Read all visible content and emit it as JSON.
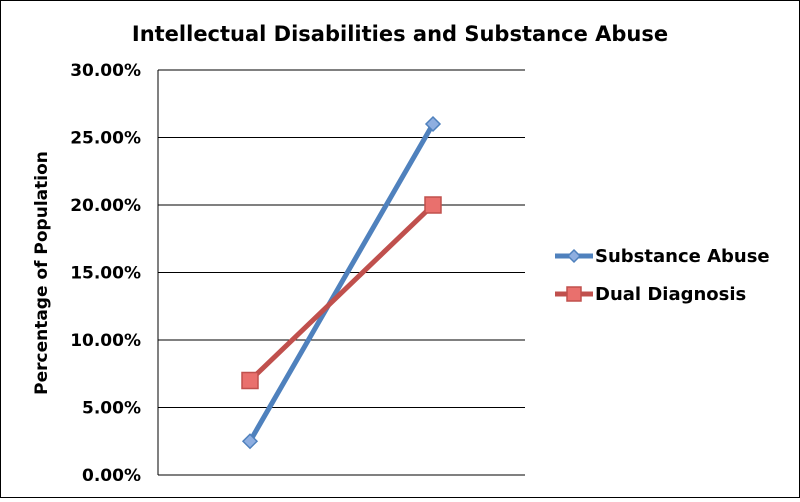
{
  "chart_data": {
    "type": "line",
    "title": "Intellectual Disabilities and Substance Abuse",
    "xlabel": "",
    "ylabel": "Percentage of Population",
    "ylim": [
      0,
      0.3
    ],
    "yticks": [
      "0.00%",
      "5.00%",
      "10.00%",
      "15.00%",
      "20.00%",
      "25.00%",
      "30.00%"
    ],
    "ytick_values": [
      0,
      0.05,
      0.1,
      0.15,
      0.2,
      0.25,
      0.3
    ],
    "categories": [
      "",
      ""
    ],
    "grid": true,
    "legend_position": "right",
    "series": [
      {
        "name": "Substance Abuse",
        "values": [
          0.025,
          0.26
        ],
        "color": "#4F81BD",
        "marker": "diamond"
      },
      {
        "name": "Dual Diagnosis",
        "values": [
          0.07,
          0.2
        ],
        "color": "#C0504D",
        "marker": "square"
      }
    ]
  }
}
